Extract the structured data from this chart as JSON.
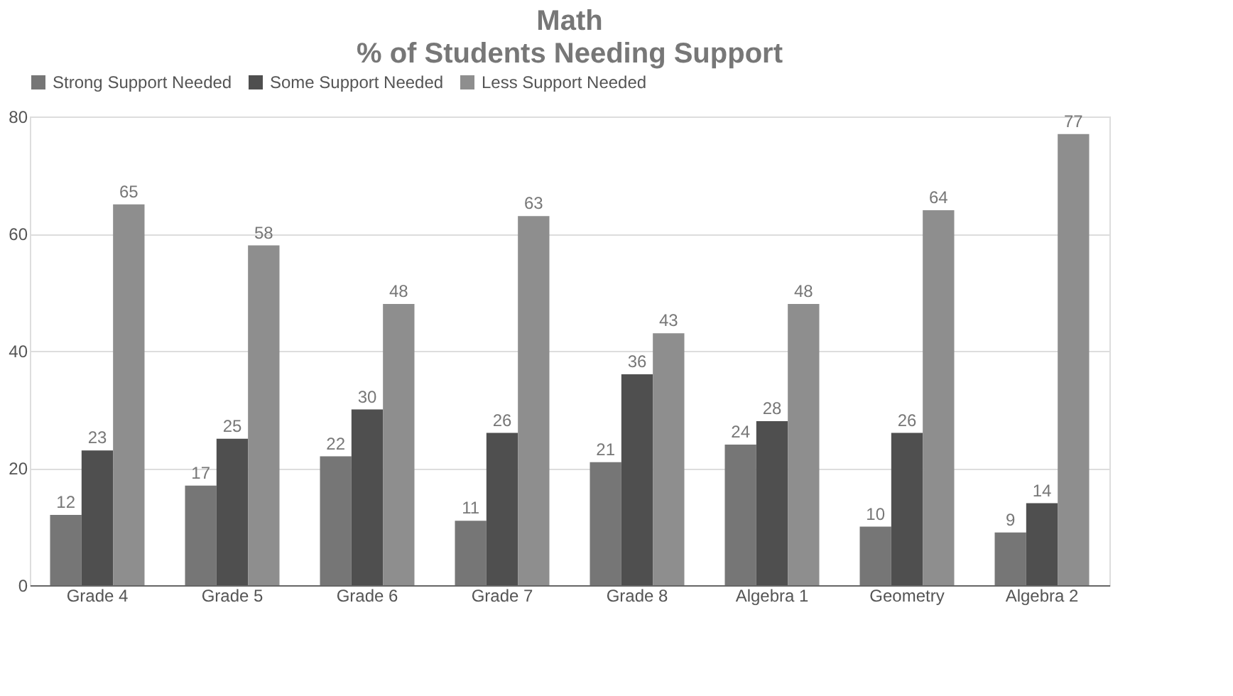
{
  "chart_data": {
    "type": "bar",
    "title": "Math",
    "subtitle": "% of Students Needing Support",
    "categories": [
      "Grade 4",
      "Grade 5",
      "Grade 6",
      "Grade 7",
      "Grade 8",
      "Algebra 1",
      "Geometry",
      "Algebra 2"
    ],
    "series": [
      {
        "name": "Strong Support Needed",
        "color": "#767676",
        "values": [
          12,
          17,
          22,
          11,
          21,
          24,
          10,
          9
        ]
      },
      {
        "name": "Some Support Needed",
        "color": "#4f4f4f",
        "values": [
          23,
          25,
          30,
          26,
          36,
          28,
          26,
          14
        ]
      },
      {
        "name": "Less Support Needed",
        "color": "#8e8e8e",
        "values": [
          65,
          58,
          48,
          63,
          43,
          48,
          64,
          77
        ]
      }
    ],
    "ylim": [
      0,
      80
    ],
    "yticks": [
      0,
      20,
      40,
      60,
      80
    ],
    "grid": "y",
    "legend": "top",
    "data_labels": true
  }
}
